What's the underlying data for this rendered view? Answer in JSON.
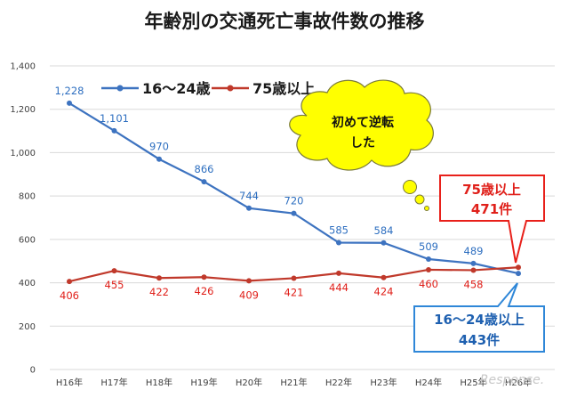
{
  "chart_data": {
    "type": "line",
    "title": "年齢別の交通死亡事故件数の推移",
    "categories": [
      "H16年",
      "H17年",
      "H18年",
      "H19年",
      "H20年",
      "H21年",
      "H22年",
      "H23年",
      "H24年",
      "H25年",
      "H26年"
    ],
    "ylim": [
      0,
      1400
    ],
    "yticks": [
      0,
      200,
      400,
      600,
      800,
      1000,
      1200,
      1400
    ],
    "ytick_labels": [
      "0",
      "200",
      "400",
      "600",
      "800",
      "1,000",
      "1,200",
      "1,400"
    ],
    "grid": true,
    "legend_position": "top-left",
    "series": [
      {
        "name": "16～24歳",
        "color": "#3d73c0",
        "values": [
          1228,
          1101,
          970,
          866,
          744,
          720,
          585,
          584,
          509,
          489,
          443
        ],
        "labels": [
          "1,228",
          "1,101",
          "970",
          "866",
          "744",
          "720",
          "585",
          "584",
          "509",
          "489",
          ""
        ]
      },
      {
        "name": "75歳以上",
        "color": "#c0392b",
        "values": [
          406,
          455,
          422,
          426,
          409,
          421,
          444,
          424,
          460,
          458,
          471
        ],
        "labels": [
          "406",
          "455",
          "422",
          "426",
          "409",
          "421",
          "444",
          "424",
          "460",
          "458",
          ""
        ]
      }
    ],
    "annotations": {
      "bubble": [
        "初めて逆転",
        "した"
      ],
      "callout_old": [
        "75歳以上",
        "471件"
      ],
      "callout_young": [
        "16～24歳以上",
        "443件"
      ]
    }
  },
  "watermark": "Response.",
  "colors": {
    "bubble_fill": "#ffff00",
    "bubble_stroke": "#7a7a3a",
    "callout_red_border": "#e8201a",
    "callout_blue_border": "#2f87d8"
  }
}
